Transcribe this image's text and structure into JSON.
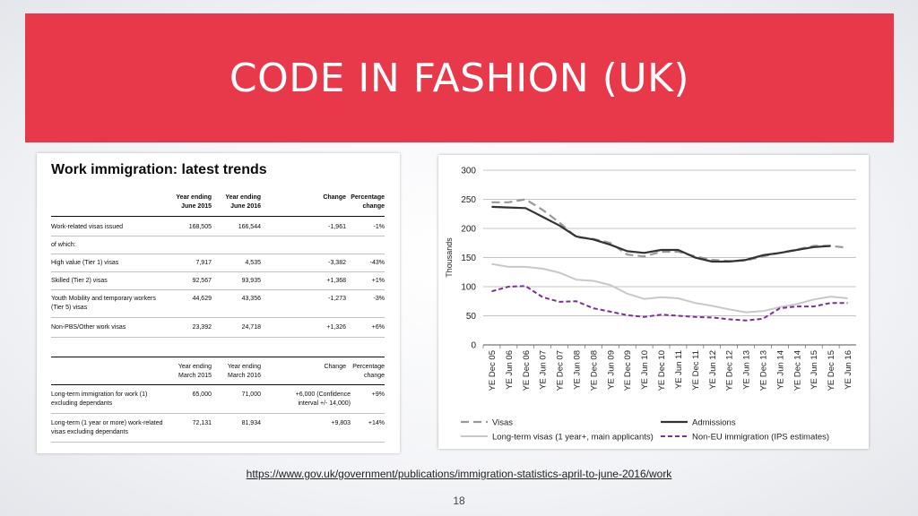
{
  "slide": {
    "title": "CODE IN FASHION (UK)",
    "url": "https://www.gov.uk/government/publications/immigration-statistics-april-to-june-2016/work",
    "page_number": "18",
    "accent_color": "#e8394a"
  },
  "table": {
    "title": "Work immigration: latest trends",
    "section1": {
      "headers": [
        "Year ending June 2015",
        "Year ending June 2016",
        "Change",
        "Percentage change"
      ],
      "header_lines": [
        [
          "Year ending",
          "June 2015"
        ],
        [
          "Year ending",
          "June 2016"
        ],
        [
          "Change",
          ""
        ],
        [
          "Percentage",
          "change"
        ]
      ],
      "rows": [
        {
          "label": [
            "Work-related visas issued"
          ],
          "v1": "168,505",
          "v2": "166,544",
          "change": "-1,961",
          "pct": "-1%"
        },
        {
          "label": [
            "of which:"
          ],
          "v1": "",
          "v2": "",
          "change": "",
          "pct": ""
        },
        {
          "label": [
            "High value (Tier 1) visas"
          ],
          "v1": "7,917",
          "v2": "4,535",
          "change": "-3,382",
          "pct": "-43%"
        },
        {
          "label": [
            "Skilled (Tier 2) visas"
          ],
          "v1": "92,567",
          "v2": "93,935",
          "change": "+1,368",
          "pct": "+1%"
        },
        {
          "label": [
            "Youth Mobility and temporary workers",
            "(Tier 5) visas"
          ],
          "v1": "44,629",
          "v2": "43,356",
          "change": "-1,273",
          "pct": "-3%"
        },
        {
          "label": [
            "Non-PBS/Other work visas"
          ],
          "v1": "23,392",
          "v2": "24,718",
          "change": "+1,326",
          "pct": "+6%"
        }
      ]
    },
    "section2": {
      "header_lines": [
        [
          "Year ending",
          "March 2015"
        ],
        [
          "Year ending",
          "March 2016"
        ],
        [
          "Change",
          ""
        ],
        [
          "Percentage",
          "change"
        ]
      ],
      "rows": [
        {
          "label": [
            "Long-term immigration for work (1)",
            "excluding dependants"
          ],
          "v1": "65,000",
          "v2": "71,000",
          "change": [
            "+6,000 (Confidence",
            "interval +/- 14,000)"
          ],
          "pct": "+9%"
        },
        {
          "label": [
            "Long-term (1 year or more) work-related",
            "visas excluding dependants"
          ],
          "v1": "72,131",
          "v2": "81,934",
          "change": [
            "+9,803"
          ],
          "pct": "+14%"
        }
      ]
    }
  },
  "chart_data": {
    "type": "line",
    "ylabel": "Thousands",
    "ylim": [
      0,
      300
    ],
    "yticks": [
      0,
      50,
      100,
      150,
      200,
      250,
      300
    ],
    "grid": true,
    "legend_position": "bottom",
    "categories": [
      "YE Dec 05",
      "YE Jun 06",
      "YE Dec 06",
      "YE Jun 07",
      "YE Dec 07",
      "YE Jun 08",
      "YE Dec 08",
      "YE Jun 09",
      "YE Dec 09",
      "YE Jun 10",
      "YE Dec 10",
      "YE Jun 11",
      "YE Dec 11",
      "YE Jun 12",
      "YE Dec 12",
      "YE Jun 13",
      "YE Dec 13",
      "YE Jun 14",
      "YE Dec 14",
      "YE Jun 15",
      "YE Dec 15",
      "YE Jun 16"
    ],
    "series": [
      {
        "name": "Visas",
        "style": "dashed",
        "color": "#999999",
        "values": [
          245,
          245,
          250,
          232,
          210,
          185,
          182,
          175,
          155,
          152,
          160,
          160,
          152,
          146,
          144,
          145,
          152,
          158,
          164,
          170,
          170,
          167
        ]
      },
      {
        "name": "Admissions",
        "style": "solid",
        "color": "#333333",
        "values": [
          237,
          236,
          235,
          220,
          205,
          186,
          181,
          172,
          161,
          158,
          163,
          163,
          150,
          143,
          143,
          146,
          154,
          158,
          163,
          168,
          170,
          null
        ]
      },
      {
        "name": "Long-term visas (1 year+, main applicants)",
        "style": "solid",
        "color": "#c8c8c8",
        "values": [
          139,
          134,
          134,
          131,
          124,
          112,
          110,
          103,
          88,
          79,
          82,
          80,
          72,
          67,
          61,
          56,
          58,
          65,
          70,
          78,
          83,
          80
        ]
      },
      {
        "name": "Non-EU immigration (IPS estimates)",
        "style": "dashed",
        "color": "#7b3294",
        "values": [
          92,
          100,
          101,
          82,
          74,
          75,
          63,
          57,
          51,
          48,
          52,
          50,
          48,
          47,
          44,
          42,
          45,
          63,
          66,
          66,
          72,
          72
        ]
      }
    ]
  }
}
